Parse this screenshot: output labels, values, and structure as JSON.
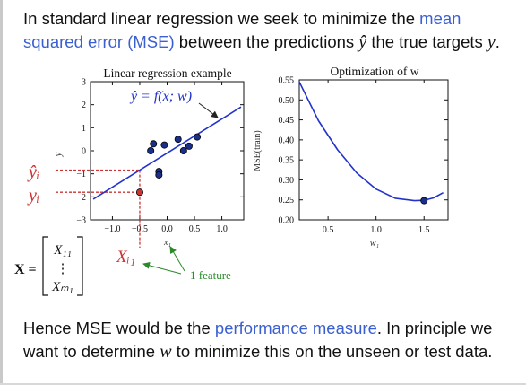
{
  "intro": {
    "t1": "In standard linear regression we seek to minimize the ",
    "t2": "mean squared error (MSE)",
    "t3": " between the predictions ",
    "t4": "ŷ",
    "t5": " the true targets ",
    "t6": "y",
    "t7": "."
  },
  "left_chart": {
    "title": "Linear regression example",
    "xlabel": "x₁",
    "ylabel": "y",
    "equation": "ŷ = f(x; w)",
    "xticks": [
      "−1.0",
      "−0.5",
      "0.0",
      "0.5",
      "1.0"
    ],
    "yticks": [
      "3",
      "2",
      "1",
      "0",
      "−1",
      "−2",
      "−3"
    ]
  },
  "right_chart": {
    "title": "Optimization of w",
    "xlabel": "w₁",
    "ylabel": "MSE(train)",
    "xticks": [
      "0.5",
      "1.0",
      "1.5"
    ],
    "yticks": [
      "0.55",
      "0.50",
      "0.45",
      "0.40",
      "0.35",
      "0.30",
      "0.25",
      "0.20"
    ]
  },
  "annotations": {
    "yhat_i": "ŷᵢ",
    "y_i": "yᵢ",
    "x_i1": "Xᵢ₁",
    "feature": "1 feature",
    "X_label": "X =",
    "X11": "X₁₁",
    "vdots": "⋮",
    "Xm1": "Xₘ₁"
  },
  "chart_data": [
    {
      "type": "scatter",
      "title": "Linear regression example",
      "xlabel": "x₁",
      "ylabel": "y",
      "xlim": [
        -1.4,
        1.4
      ],
      "ylim": [
        -3,
        3
      ],
      "points": [
        {
          "x": -0.3,
          "y": 0.0
        },
        {
          "x": -0.25,
          "y": 0.3
        },
        {
          "x": -0.05,
          "y": 0.25
        },
        {
          "x": 0.2,
          "y": 0.5
        },
        {
          "x": 0.3,
          "y": 0.0
        },
        {
          "x": 0.4,
          "y": 0.2
        },
        {
          "x": 0.55,
          "y": 0.6
        },
        {
          "x": -0.15,
          "y": -0.9
        },
        {
          "x": -0.15,
          "y": -1.05
        },
        {
          "x": -0.5,
          "y": -1.8
        }
      ],
      "fit_line": {
        "x": [
          -1.35,
          1.35
        ],
        "y": [
          -2.1,
          1.9
        ]
      },
      "highlight_point": {
        "x": -0.5,
        "y": -1.8
      }
    },
    {
      "type": "line",
      "title": "Optimization of w",
      "xlabel": "w₁",
      "ylabel": "MSE(train)",
      "xlim": [
        0.2,
        1.75
      ],
      "ylim": [
        0.2,
        0.55
      ],
      "x": [
        0.2,
        0.4,
        0.6,
        0.8,
        1.0,
        1.2,
        1.4,
        1.5,
        1.6,
        1.7
      ],
      "y": [
        0.545,
        0.448,
        0.375,
        0.317,
        0.277,
        0.254,
        0.248,
        0.249,
        0.255,
        0.268
      ],
      "minimum": {
        "x": 1.5,
        "y": 0.248
      }
    }
  ],
  "outro": {
    "t1": "Hence MSE would be the ",
    "t2": "performance measure",
    "t3": ". In principle we want to determine ",
    "t4": "w",
    "t5": " to minimize this on the unseen or test data."
  }
}
